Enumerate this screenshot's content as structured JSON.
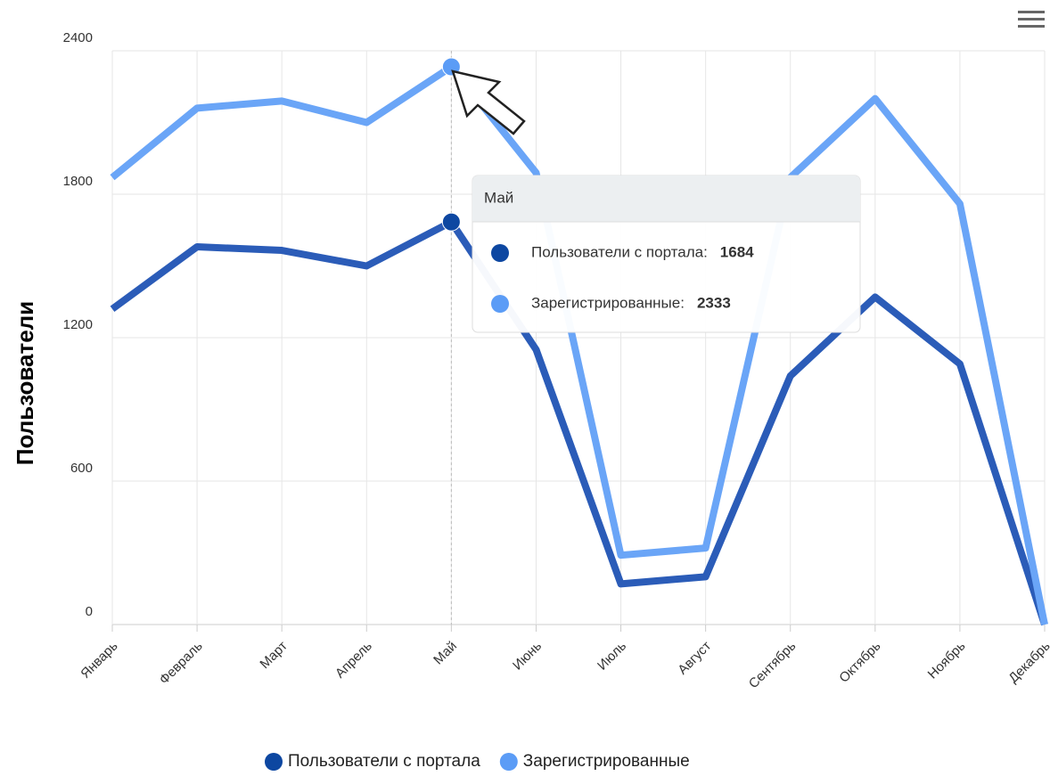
{
  "chart_data": {
    "type": "line",
    "y_axis_label": "Пользователи",
    "categories": [
      "Январь",
      "Февраль",
      "Март",
      "Апрель",
      "Май",
      "Июнь",
      "Июль",
      "Август",
      "Сентябрь",
      "Октябрь",
      "Ноябрь",
      "Декабрь"
    ],
    "series": [
      {
        "name": "Пользователи с портала",
        "color": "#2b5cb8",
        "marker_color": "#0d47a1",
        "values": [
          1320,
          1580,
          1565,
          1500,
          1684,
          1150,
          170,
          200,
          1040,
          1370,
          1090,
          0
        ]
      },
      {
        "name": "Зарегистрированные",
        "color": "#6aa5f7",
        "marker_color": "#5b9cf6",
        "values": [
          1870,
          2160,
          2190,
          2100,
          2333,
          1890,
          290,
          320,
          1870,
          2200,
          1760,
          0
        ]
      }
    ],
    "ylim": [
      0,
      2400
    ],
    "yticks": [
      0,
      600,
      1200,
      1800,
      2400
    ],
    "grid": true,
    "legend": "bottom",
    "tooltip": {
      "labels": [
        "Пользователи с портала:",
        "Зарегистрированные:"
      ]
    }
  }
}
